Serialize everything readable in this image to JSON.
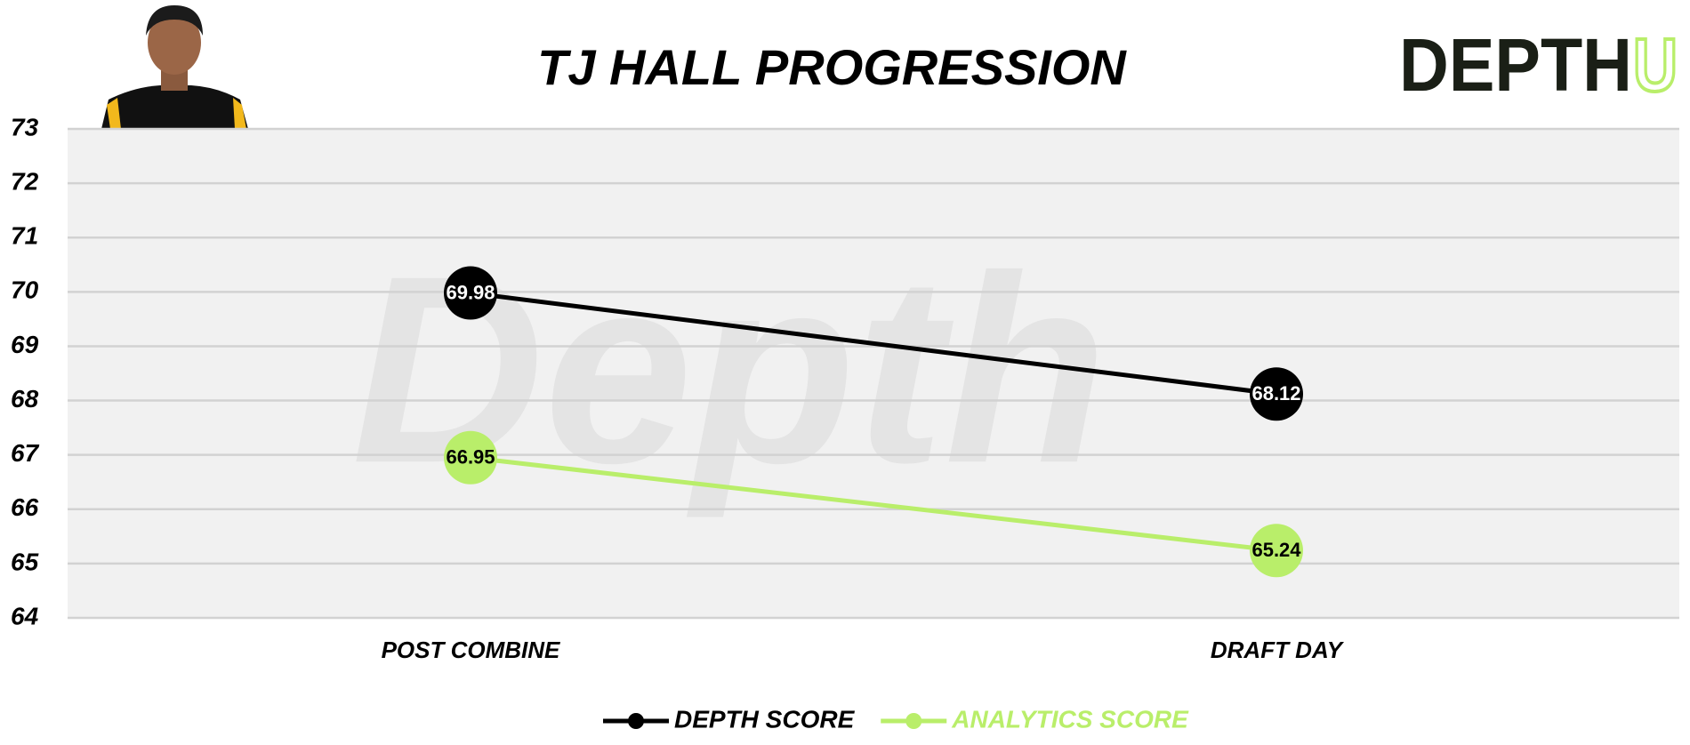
{
  "chart_data": {
    "type": "line",
    "title": "TJ HALL PROGRESSION",
    "logo": {
      "main": "DEPTH",
      "accent": "U"
    },
    "watermark": "Depth",
    "categories": [
      "POST COMBINE",
      "DRAFT DAY"
    ],
    "series": [
      {
        "name": "DEPTH SCORE",
        "color": "#000000",
        "values": [
          69.98,
          68.12
        ]
      },
      {
        "name": "ANALYTICS SCORE",
        "color": "#b9ee6a",
        "values": [
          66.95,
          65.24
        ]
      }
    ],
    "ylim": [
      64,
      73
    ],
    "yticks": [
      64,
      65,
      66,
      67,
      68,
      69,
      70,
      71,
      72,
      73
    ],
    "grid": true
  }
}
